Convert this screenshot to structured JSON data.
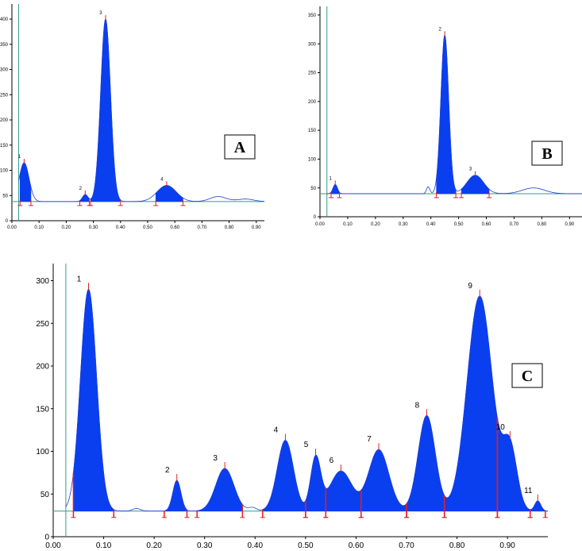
{
  "chart_data": [
    {
      "id": "A",
      "type": "area",
      "label": "A",
      "xlim": [
        0.0,
        0.93
      ],
      "ylim": [
        0,
        430
      ],
      "x_ticks": [
        0.0,
        0.1,
        0.2,
        0.3,
        0.4,
        0.5,
        0.6,
        0.7,
        0.8,
        0.9
      ],
      "x_tick_labels": [
        "0.00",
        "0.10",
        "0.20",
        "0.30",
        "0.40",
        "0.50",
        "0.60",
        "0.70",
        "0.80",
        "0.90"
      ],
      "y_ticks": [
        0,
        50,
        100,
        150,
        200,
        250,
        300,
        350,
        400
      ],
      "y_tick_labels": [
        "0",
        "50",
        "100",
        "150",
        "200",
        "250",
        "300",
        "350",
        "400"
      ],
      "baseline": 38,
      "start_line_x": 0.025,
      "peaks": [
        {
          "label": "1",
          "rf": 0.045,
          "height": 115,
          "width": 0.018,
          "start": 0.03,
          "end": 0.07
        },
        {
          "label": "2",
          "rf": 0.27,
          "height": 52,
          "width": 0.01,
          "start": 0.25,
          "end": 0.285
        },
        {
          "label": "3",
          "rf": 0.345,
          "height": 400,
          "width": 0.018,
          "start": 0.29,
          "end": 0.4
        },
        {
          "label": "4",
          "rf": 0.57,
          "height": 70,
          "width": 0.035,
          "start": 0.53,
          "end": 0.63
        }
      ],
      "extra_bumps": [
        {
          "rf": 0.76,
          "height": 48,
          "width": 0.03
        },
        {
          "rf": 0.86,
          "height": 43,
          "width": 0.03
        }
      ]
    },
    {
      "id": "B",
      "type": "area",
      "label": "B",
      "xlim": [
        0.0,
        0.945
      ],
      "ylim": [
        0,
        365
      ],
      "x_ticks": [
        0.0,
        0.1,
        0.2,
        0.3,
        0.4,
        0.5,
        0.6,
        0.7,
        0.8,
        0.9
      ],
      "x_tick_labels": [
        "0.00",
        "0.10",
        "0.20",
        "0.30",
        "0.40",
        "0.50",
        "0.60",
        "0.70",
        "0.80",
        "0.90"
      ],
      "y_ticks": [
        0,
        50,
        100,
        150,
        200,
        250,
        300,
        350
      ],
      "y_tick_labels": [
        "0",
        "50",
        "100",
        "150",
        "200",
        "250",
        "300",
        "350"
      ],
      "baseline": 40,
      "start_line_x": 0.025,
      "peaks": [
        {
          "label": "1",
          "rf": 0.055,
          "height": 56,
          "width": 0.008,
          "start": 0.04,
          "end": 0.07
        },
        {
          "label": "2",
          "rf": 0.45,
          "height": 315,
          "width": 0.014,
          "start": 0.42,
          "end": 0.49
        },
        {
          "label": "3",
          "rf": 0.56,
          "height": 72,
          "width": 0.03,
          "start": 0.51,
          "end": 0.61
        }
      ],
      "extra_bumps": [
        {
          "rf": 0.39,
          "height": 52,
          "width": 0.006
        },
        {
          "rf": 0.77,
          "height": 50,
          "width": 0.04
        }
      ]
    },
    {
      "id": "C",
      "type": "area",
      "label": "C",
      "xlim": [
        0.0,
        0.98
      ],
      "ylim": [
        0,
        320
      ],
      "x_ticks": [
        0.0,
        0.1,
        0.2,
        0.3,
        0.4,
        0.5,
        0.6,
        0.7,
        0.8,
        0.9
      ],
      "x_tick_labels": [
        "0.00",
        "0.10",
        "0.20",
        "0.30",
        "0.40",
        "0.50",
        "0.60",
        "0.70",
        "0.80",
        "0.90"
      ],
      "y_ticks": [
        0,
        50,
        100,
        150,
        200,
        250,
        300
      ],
      "y_tick_labels": [
        "0",
        "50",
        "100",
        "150",
        "200",
        "250",
        "300"
      ],
      "baseline": 30,
      "start_line_x": 0.025,
      "peaks": [
        {
          "label": "1",
          "rf": 0.07,
          "height": 290,
          "width": 0.016,
          "start": 0.04,
          "end": 0.12
        },
        {
          "label": "2",
          "rf": 0.245,
          "height": 66,
          "width": 0.008,
          "start": 0.22,
          "end": 0.265
        },
        {
          "label": "3",
          "rf": 0.34,
          "height": 80,
          "width": 0.018,
          "start": 0.285,
          "end": 0.375
        },
        {
          "label": "4",
          "rf": 0.46,
          "height": 113,
          "width": 0.016,
          "start": 0.415,
          "end": 0.5
        },
        {
          "label": "5",
          "rf": 0.52,
          "height": 92,
          "width": 0.01,
          "start": 0.5,
          "end": 0.54
        },
        {
          "label": "6",
          "rf": 0.57,
          "height": 77,
          "width": 0.022,
          "start": 0.54,
          "end": 0.61
        },
        {
          "label": "7",
          "rf": 0.645,
          "height": 102,
          "width": 0.02,
          "start": 0.61,
          "end": 0.7
        },
        {
          "label": "8",
          "rf": 0.74,
          "height": 142,
          "width": 0.017,
          "start": 0.7,
          "end": 0.775
        },
        {
          "label": "9",
          "rf": 0.845,
          "height": 282,
          "width": 0.025,
          "start": 0.775,
          "end": 0.88
        },
        {
          "label": "10",
          "rf": 0.905,
          "height": 102,
          "width": 0.014,
          "start": 0.88,
          "end": 0.945
        },
        {
          "label": "11",
          "rf": 0.96,
          "height": 42,
          "width": 0.006,
          "start": 0.945,
          "end": 0.975
        }
      ],
      "extra_bumps": [
        {
          "rf": 0.165,
          "height": 33,
          "width": 0.008
        },
        {
          "rf": 0.395,
          "height": 34,
          "width": 0.008
        }
      ]
    }
  ]
}
